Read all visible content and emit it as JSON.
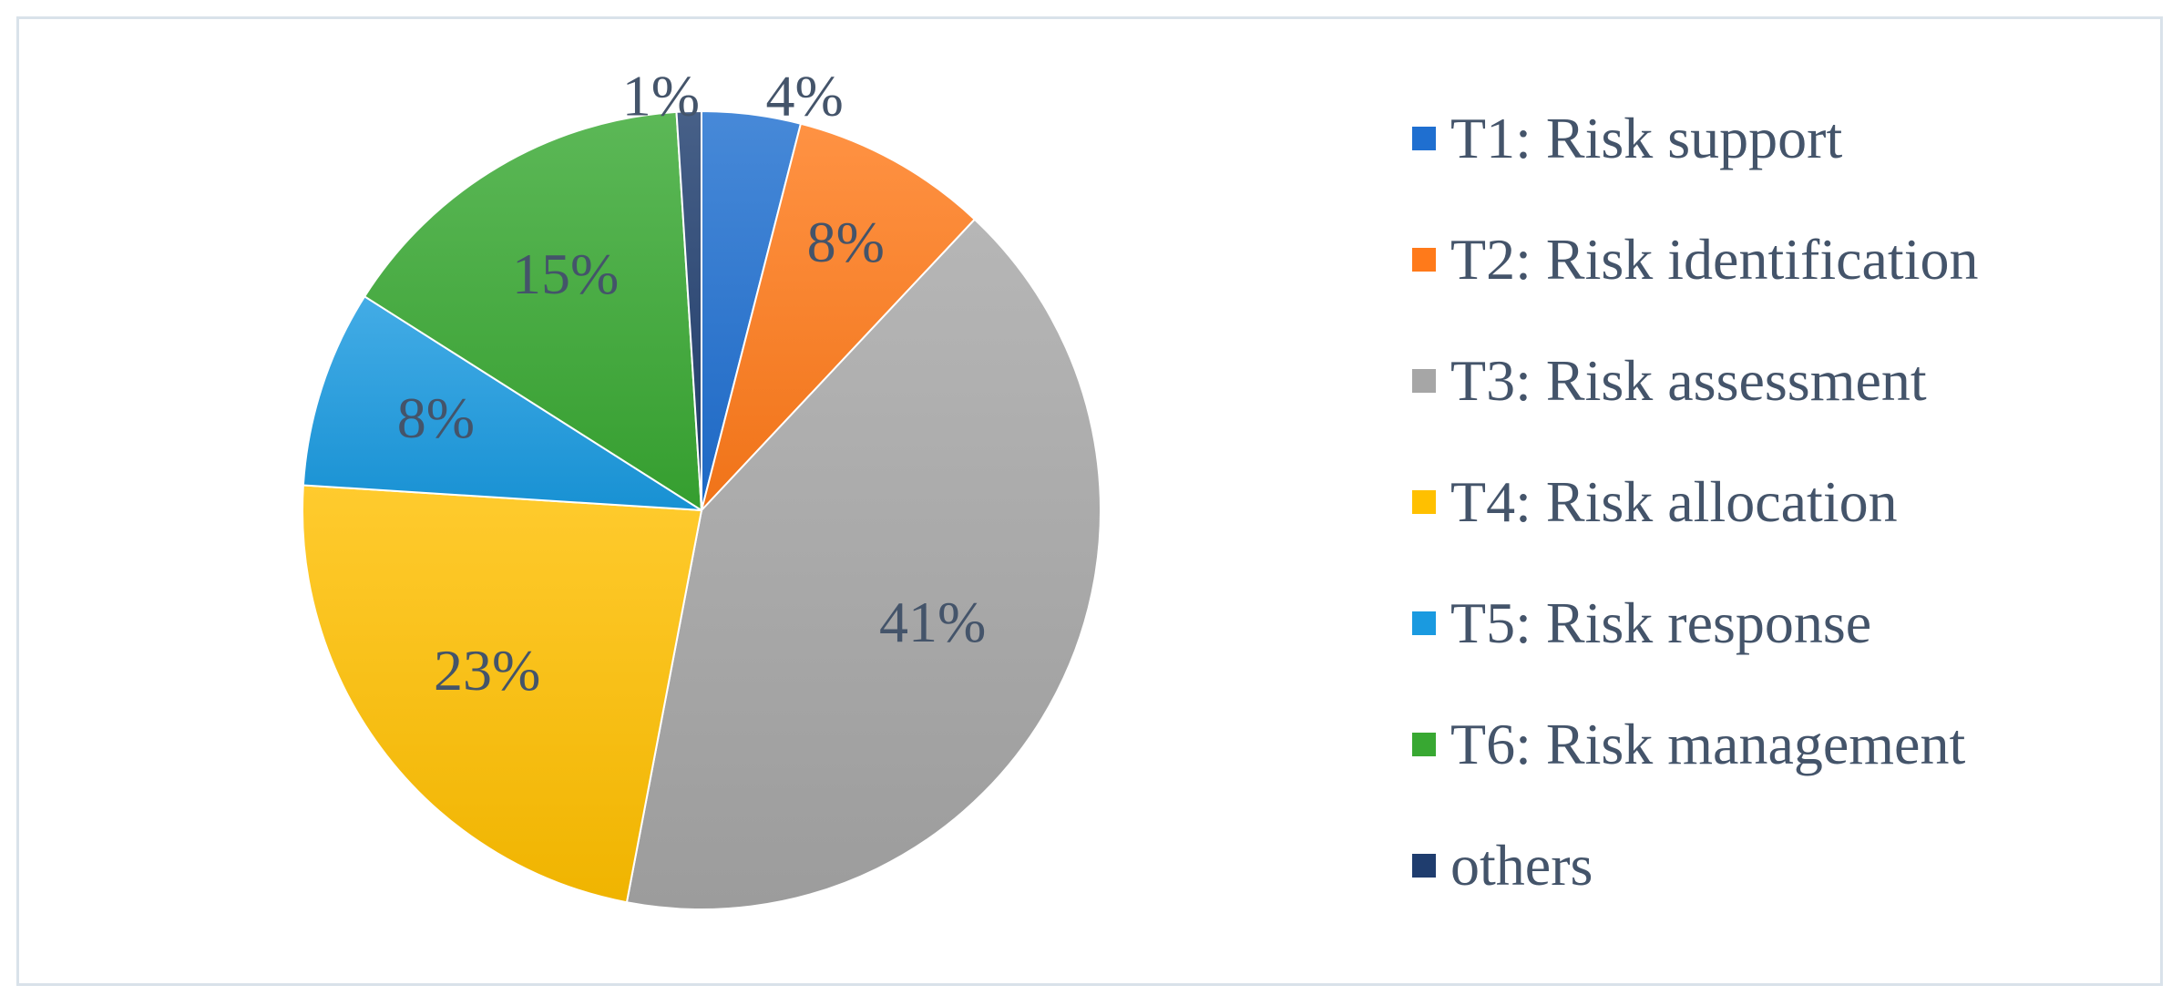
{
  "chart_data": {
    "type": "pie",
    "title": "",
    "legend_position": "right",
    "slices": [
      {
        "label": "T1: Risk support",
        "value": 4,
        "display": "4%",
        "color": "#1f6fd0"
      },
      {
        "label": "T2: Risk identification",
        "value": 8,
        "display": "8%",
        "color": "#ff7a1a"
      },
      {
        "label": "T3: Risk assessment",
        "value": 41,
        "display": "41%",
        "color": "#a6a6a6"
      },
      {
        "label": "T4: Risk allocation",
        "value": 23,
        "display": "23%",
        "color": "#ffc000"
      },
      {
        "label": "T5: Risk response",
        "value": 8,
        "display": "8%",
        "color": "#1a9ae0"
      },
      {
        "label": "T6: Risk management",
        "value": 15,
        "display": "15%",
        "color": "#38a832"
      },
      {
        "label": "others",
        "value": 1,
        "display": "1%",
        "color": "#1f3d6e"
      }
    ]
  }
}
